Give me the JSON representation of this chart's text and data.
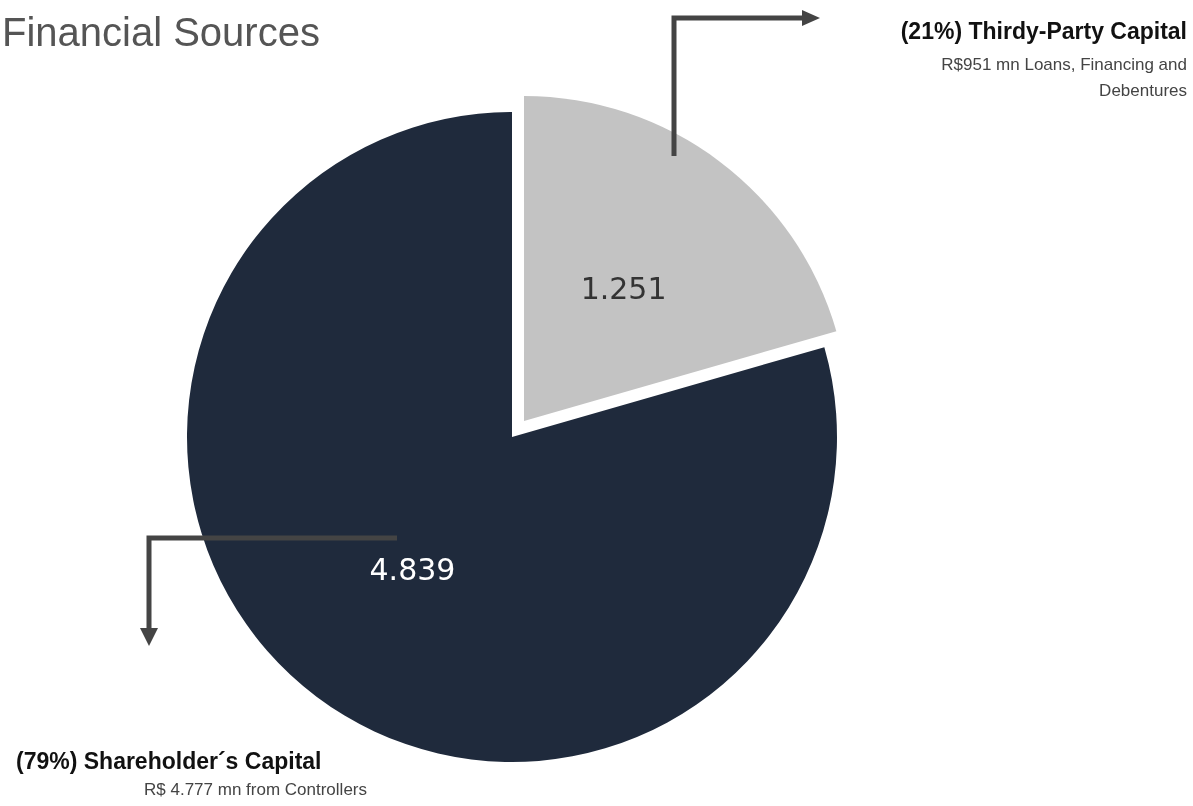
{
  "chart_data": {
    "type": "pie",
    "title": "Financial Sources",
    "categories": [
      "(21%) Thirdy-Party Capital",
      "(79%) Shareholder´s Capital"
    ],
    "values": [
      1251,
      4839
    ],
    "value_labels": [
      "1.251",
      "4.839"
    ],
    "colors": [
      "#c3c3c3",
      "#1f2a3c"
    ],
    "annotations": [
      "R$951 mn Loans, Financing and Debentures",
      "R$ 4.777 mn from Controllers"
    ],
    "legend": false
  }
}
